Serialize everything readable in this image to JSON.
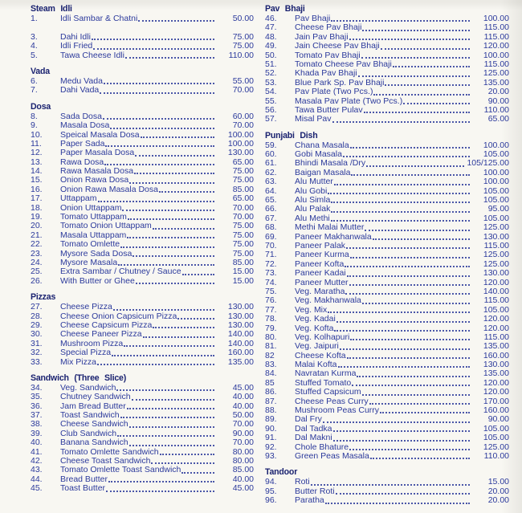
{
  "colors": {
    "header_ink": "#1a2270",
    "item_ink": "#2c3a9c",
    "paper": "#f8f7f2"
  },
  "menu": {
    "columns": [
      {
        "side": "left",
        "sections": [
          {
            "title": "Steam Idli",
            "items": [
              {
                "no": "1.",
                "name": "Idli Sambar & Chatni",
                "price": "50.00"
              },
              {
                "spacer": true
              },
              {
                "no": "3.",
                "name": "Dahi Idli",
                "price": "75.00"
              },
              {
                "no": "4.",
                "name": "Idli Fried",
                "price": "75.00"
              },
              {
                "no": "5.",
                "name": "Tawa Cheese Idli",
                "price": "110.00"
              }
            ]
          },
          {
            "title": "Vada",
            "items": [
              {
                "no": "6.",
                "name": "Medu Vada",
                "price": "55.00"
              },
              {
                "no": "7.",
                "name": "Dahi Vada",
                "price": "70.00"
              }
            ]
          },
          {
            "title": "Dosa",
            "items": [
              {
                "no": "8.",
                "name": "Sada Dosa",
                "price": "60.00"
              },
              {
                "no": "9.",
                "name": "Masala Dosa",
                "price": "70.00"
              },
              {
                "no": "10.",
                "name": "Speical Masala Dosa",
                "price": "100.00"
              },
              {
                "no": "11.",
                "name": "Paper Sada",
                "price": "100.00"
              },
              {
                "no": "12.",
                "name": "Paper Masala Dosa",
                "price": "130.00"
              },
              {
                "no": "13.",
                "name": "Rawa Dosa",
                "price": "65.00"
              },
              {
                "no": "14.",
                "name": "Rawa Masala Dosa",
                "price": "75.00"
              },
              {
                "no": "15.",
                "name": "Onion Rawa Dosa",
                "price": "75.00"
              },
              {
                "no": "16.",
                "name": "Onion Rawa Masala Dosa",
                "price": "85.00"
              },
              {
                "no": "17.",
                "name": "Uttappam",
                "price": "65.00"
              },
              {
                "no": "18.",
                "name": "Onion Uttappam",
                "price": "70.00"
              },
              {
                "no": "19.",
                "name": "Tomato Uttappam",
                "price": "70.00"
              },
              {
                "no": "20.",
                "name": "Tomato  Onion Uttappam",
                "price": "75.00"
              },
              {
                "no": "21.",
                "name": "Masala Uttappam",
                "price": "75.00"
              },
              {
                "no": "22.",
                "name": "Tomato Omlette",
                "price": "75.00"
              },
              {
                "no": "23.",
                "name": "Mysore Sada Dosa",
                "price": "75.00"
              },
              {
                "no": "24.",
                "name": "Mysore Masala",
                "price": "85.00"
              },
              {
                "no": "25.",
                "name": "Extra Sambar / Chutney / Sauce",
                "price": "15.00"
              },
              {
                "no": "26.",
                "name": "With Butter or Ghee",
                "price": "15.00"
              }
            ]
          },
          {
            "title": "Pizzas",
            "items": [
              {
                "no": "27.",
                "name": "Cheese Pizza",
                "price": "130.00"
              },
              {
                "no": "28.",
                "name": "Cheese Onion Capsicum Pizza",
                "price": "130.00"
              },
              {
                "no": "29.",
                "name": "Cheese Capsicum Pizza",
                "price": "130.00"
              },
              {
                "no": "30.",
                "name": "Cheese Paneer Pizza",
                "price": "140.00"
              },
              {
                "no": "31.",
                "name": "Mushroom Pizza",
                "price": "140.00"
              },
              {
                "no": "32.",
                "name": "Special Pizza",
                "price": "160.00"
              },
              {
                "no": "33.",
                "name": "Mix Pizza",
                "price": "135.00"
              }
            ]
          },
          {
            "title": "Sandwich (Three Slice)",
            "items": [
              {
                "no": "34.",
                "name": "Veg. Sandwich",
                "price": "45.00"
              },
              {
                "no": "35.",
                "name": "Chutney Sandwich",
                "price": "40.00"
              },
              {
                "no": "36.",
                "name": "Jam Bread Butter",
                "price": "40.00"
              },
              {
                "no": "37.",
                "name": "Toast Sandwich",
                "price": "50.00"
              },
              {
                "no": "38.",
                "name": "Cheese Sandwich",
                "price": "70.00"
              },
              {
                "no": "39.",
                "name": "Club Sandwich",
                "price": "90.00"
              },
              {
                "no": "40.",
                "name": "Banana Sandwich",
                "price": "70.00"
              },
              {
                "no": "41.",
                "name": "Tomato Omlette Sandwich",
                "price": "80.00"
              },
              {
                "no": "42.",
                "name": "Cheese Toast Sandwich",
                "price": "80.00"
              },
              {
                "no": "43.",
                "name": "Tomato Omlette Toast Sandwich",
                "price": "85.00"
              },
              {
                "no": "44.",
                "name": "Bread Butter",
                "price": "40.00"
              },
              {
                "no": "45.",
                "name": "Toast Butter",
                "price": "45.00"
              }
            ]
          }
        ]
      },
      {
        "side": "right",
        "sections": [
          {
            "title": "Pav Bhaji",
            "items": [
              {
                "no": "46.",
                "name": "Pav Bhaji",
                "price": "100.00"
              },
              {
                "no": "47.",
                "name": "Cheese Pav Bhaji",
                "price": "115.00"
              },
              {
                "no": "48.",
                "name": "Jain Pav Bhaji",
                "price": "115.00"
              },
              {
                "no": "49.",
                "name": "Jain Cheese Pav Bhaji",
                "price": "120.00"
              },
              {
                "no": "50.",
                "name": "Tomato Pav Bhaji",
                "price": "100.00"
              },
              {
                "no": "51.",
                "name": "Tomato Cheese Pav Bhaji",
                "price": "115.00"
              },
              {
                "no": "52.",
                "name": "Khada Pav Bhaji",
                "price": "125.00"
              },
              {
                "no": "53.",
                "name": "Blue Park Sp. Pav Bhaji",
                "price": "135.00"
              },
              {
                "no": "54.",
                "name": "Pav Plate (Two Pcs.)",
                "price": "20.00"
              },
              {
                "no": "55.",
                "name": "Masala Pav Plate (Two Pcs.)",
                "price": "90.00"
              },
              {
                "no": "56.",
                "name": "Tawa Butter Pulav",
                "price": "110.00"
              },
              {
                "no": "57.",
                "name": "Misal Pav",
                "price": "65.00"
              }
            ]
          },
          {
            "title": "Punjabi Dish",
            "items": [
              {
                "no": "59.",
                "name": "Chana Masala",
                "price": "100.00"
              },
              {
                "no": "60.",
                "name": "Gobi Masala",
                "price": "105.00"
              },
              {
                "no": "61.",
                "name": "Bhindi Masala /Dry",
                "price": "105/125.00"
              },
              {
                "no": "62.",
                "name": "Baigan Masala",
                "price": "100.00"
              },
              {
                "no": "63.",
                "name": "Alu Mutter",
                "price": "100.00"
              },
              {
                "no": "64.",
                "name": "Alu Gobi",
                "price": "105.00"
              },
              {
                "no": "65.",
                "name": "Alu Simla",
                "price": "105.00"
              },
              {
                "no": "66.",
                "name": "Alu Palak",
                "price": "95.00"
              },
              {
                "no": "67.",
                "name": "Alu Methi",
                "price": "105.00"
              },
              {
                "no": "68.",
                "name": "Methi Malai Mutter",
                "price": "125.00"
              },
              {
                "no": "69.",
                "name": "Paneer Makhanwala",
                "price": "130.00"
              },
              {
                "no": "70.",
                "name": "Paneer Palak",
                "price": "115.00"
              },
              {
                "no": "71.",
                "name": "Paneer Kurma",
                "price": "125.00"
              },
              {
                "no": "72.",
                "name": "Paneer Kofta",
                "price": "125.00"
              },
              {
                "no": "73.",
                "name": "Paneer Kadai",
                "price": "130.00"
              },
              {
                "no": "74.",
                "name": "Paneer Mutter ",
                "price": "120.00"
              },
              {
                "no": "75.",
                "name": "Veg. Maratha",
                "price": "140.00"
              },
              {
                "no": "76.",
                "name": "Veg. Makhanwala",
                "price": "115.00"
              },
              {
                "no": "77.",
                "name": "Veg. Mix",
                "price": "105.00"
              },
              {
                "no": "78.",
                "name": "Veg. Kadai",
                "price": "120.00"
              },
              {
                "no": "79.",
                "name": "Veg. Kofta",
                "price": "120.00"
              },
              {
                "no": "80.",
                "name": "Veg. Kolhapuri",
                "price": "115.00"
              },
              {
                "no": "81.",
                "name": "Veg. Jaipuri",
                "price": "135.00"
              },
              {
                "no": "82",
                "name": "Cheese Kofta",
                "price": "160.00"
              },
              {
                "no": "83.",
                "name": "Malai Kofta",
                "price": "130.00"
              },
              {
                "no": "84.",
                "name": "Navratan Kurma",
                "price": "135.00"
              },
              {
                "no": "85",
                "name": "Stuffed Tomato",
                "price": "120.00"
              },
              {
                "no": "86.",
                "name": "Stuffed Capsicum",
                "price": "120.00"
              },
              {
                "no": "87.",
                "name": "Cheese Peas Curry",
                "price": "170.00"
              },
              {
                "no": "88.",
                "name": "Mushroom Peas Curry",
                "price": "160.00"
              },
              {
                "no": "89.",
                "name": "Dal Fry",
                "price": "90.00"
              },
              {
                "no": "90.",
                "name": "Dal Tadka",
                "price": "105.00"
              },
              {
                "no": "91.",
                "name": "Dal Makni",
                "price": "105.00"
              },
              {
                "no": "92.",
                "name": "Chole Bhature",
                "price": "125.00"
              },
              {
                "no": "93.",
                "name": "Green Peas Masala",
                "price": "110.00"
              }
            ]
          },
          {
            "title": "Tandoor",
            "items": [
              {
                "no": "94.",
                "name": "Roti",
                "price": "15.00"
              },
              {
                "no": "95.",
                "name": "Butter Roti",
                "price": "20.00"
              },
              {
                "no": "96.",
                "name": "Paratha",
                "price": "20.00"
              }
            ]
          }
        ]
      }
    ]
  }
}
